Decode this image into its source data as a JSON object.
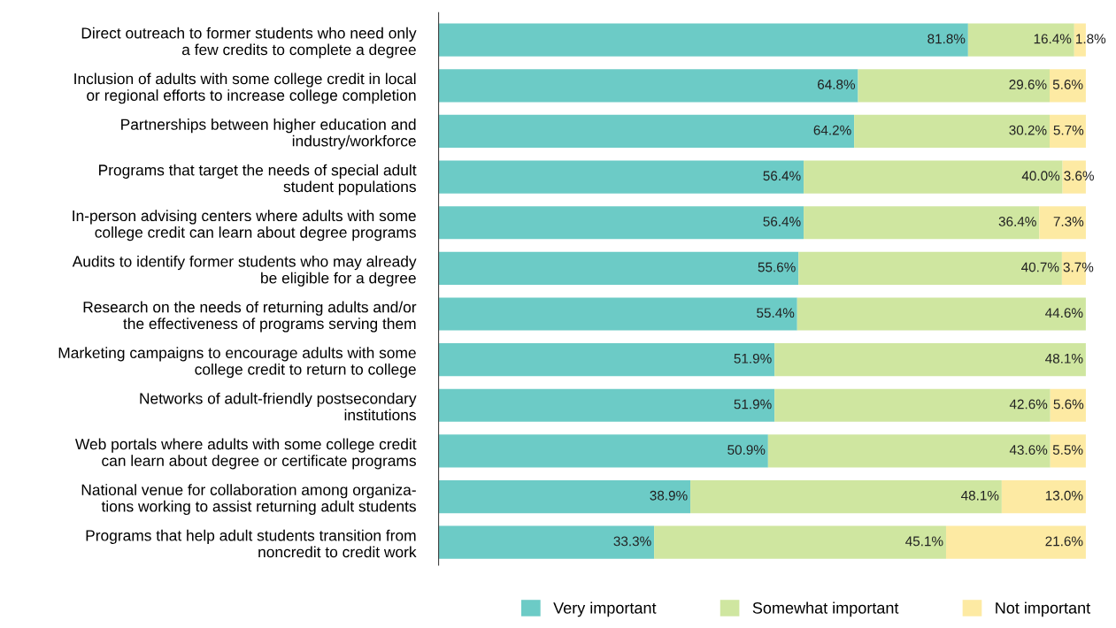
{
  "chart_data": {
    "type": "bar",
    "orientation": "horizontal",
    "stacked": true,
    "xlim": [
      0,
      100
    ],
    "tick_labels": "y",
    "grid": false,
    "legend": "bottom",
    "categories": [
      "Direct outreach to former students who need only\na few credits to complete a degree",
      "Inclusion of adults with some college credit in local\nor regional efforts to increase college completion",
      "Partnerships between higher education and\nindustry/workforce",
      "Programs that target the needs of special adult\nstudent populations",
      "In-person advising centers where adults with some\ncollege credit can learn about degree programs",
      "Audits to identify former students who may already\nbe eligible for a degree",
      "Research on the needs of returning adults and/or\nthe effectiveness of programs serving them",
      "Marketing campaigns to encourage adults with some\ncollege credit to return to college",
      "Networks of adult-friendly postsecondary\ninstitutions",
      "Web portals where adults with some college credit\ncan learn about degree or certificate programs",
      "National venue for collaboration among organiza-\ntions working to assist returning adult students",
      "Programs that help adult students transition from\nnoncredit to credit work"
    ],
    "series": [
      {
        "name": "Very important",
        "color": "#6ccbc6",
        "values": [
          81.8,
          64.8,
          64.2,
          56.4,
          56.4,
          55.6,
          55.4,
          51.9,
          51.9,
          50.9,
          38.9,
          33.3
        ],
        "value_labels": [
          "81.8%",
          "64.8%",
          "64.2%",
          "56.4%",
          "56.4%",
          "55.6%",
          "55.4%",
          "51.9%",
          "51.9%",
          "50.9%",
          "38.9%",
          "33.3%"
        ]
      },
      {
        "name": "Somewhat important",
        "color": "#cfe6a0",
        "values": [
          16.4,
          29.6,
          30.2,
          40.0,
          36.4,
          40.7,
          44.6,
          48.1,
          42.6,
          43.6,
          48.1,
          45.1
        ],
        "value_labels": [
          "16.4%",
          "29.6%",
          "30.2%",
          "40.0%",
          "36.4%",
          "40.7%",
          "44.6%",
          "48.1%",
          "42.6%",
          "43.6%",
          "48.1%",
          "45.1%"
        ]
      },
      {
        "name": "Not important",
        "color": "#fdeaa3",
        "values": [
          1.8,
          5.6,
          5.7,
          3.6,
          7.3,
          3.7,
          null,
          null,
          5.6,
          5.5,
          13.0,
          21.6
        ],
        "value_labels": [
          "1.8%",
          "5.6%",
          "5.7%",
          "3.6%",
          "7.3%",
          "3.7%",
          null,
          null,
          "5.6%",
          "5.5%",
          "13.0%",
          "21.6%"
        ]
      }
    ]
  }
}
